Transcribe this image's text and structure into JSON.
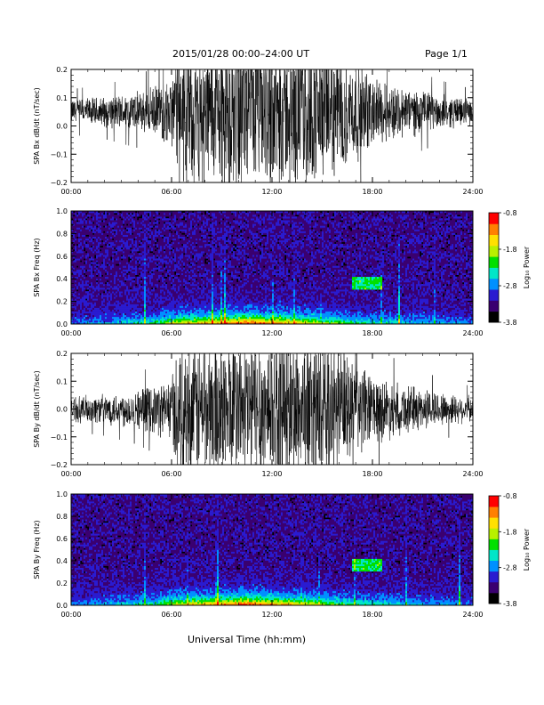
{
  "header": {
    "title": "2015/01/28  00:00–24:00 UT",
    "page": "Page 1/1"
  },
  "x_axis": {
    "label": "Universal Time (hh:mm)",
    "ticks": [
      "00:00",
      "06:00",
      "12:00",
      "18:00",
      "24:00"
    ]
  },
  "colorbar": {
    "ticks": [
      "-0.8",
      "-1.8",
      "-2.8",
      "-3.8"
    ],
    "label": "Log₁₀ Power",
    "colors": [
      "#000000",
      "#3a0070",
      "#2a1bd0",
      "#0090ff",
      "#00e6c8",
      "#00e000",
      "#b8f000",
      "#ffe000",
      "#ff8000",
      "#ff0000"
    ]
  },
  "chart_data": [
    {
      "type": "line",
      "ylabel": "SPA Bx dB/dt (nT/sec)",
      "xlim": [
        "00:00",
        "24:00"
      ],
      "ylim": [
        -0.2,
        0.2
      ],
      "yticks": [
        "0.2",
        "0.1",
        "0.0",
        "−0.1",
        "−0.2"
      ],
      "amplitude_envelope": {
        "hours": [
          0,
          2,
          4,
          5,
          6,
          6.3,
          9,
          12,
          15,
          17,
          18,
          20,
          22,
          24
        ],
        "values": [
          0.05,
          0.06,
          0.08,
          0.1,
          0.13,
          0.25,
          0.3,
          0.3,
          0.28,
          0.2,
          0.14,
          0.1,
          0.07,
          0.05
        ]
      },
      "baseline": 0.05
    },
    {
      "type": "heatmap",
      "ylabel": "SPA Bx Freq (Hz)",
      "xlim": [
        "00:00",
        "24:00"
      ],
      "ylim": [
        0.0,
        1.0
      ],
      "yticks": [
        "1.0",
        "0.8",
        "0.6",
        "0.4",
        "0.2",
        "0.0"
      ],
      "zlim": [
        -3.8,
        -0.8
      ]
    },
    {
      "type": "line",
      "ylabel": "SPA By dB/dt (nT/sec)",
      "xlim": [
        "00:00",
        "24:00"
      ],
      "ylim": [
        -0.2,
        0.2
      ],
      "yticks": [
        "0.2",
        "0.1",
        "0.0",
        "−0.1",
        "−0.2"
      ],
      "amplitude_envelope": {
        "hours": [
          0,
          2,
          4,
          5,
          6,
          6.3,
          9,
          12,
          15,
          17,
          18,
          20,
          22,
          24
        ],
        "values": [
          0.05,
          0.06,
          0.08,
          0.1,
          0.13,
          0.25,
          0.3,
          0.3,
          0.28,
          0.2,
          0.14,
          0.1,
          0.07,
          0.05
        ]
      },
      "baseline": 0.0
    },
    {
      "type": "heatmap",
      "ylabel": "SPA By Freq (Hz)",
      "xlim": [
        "00:00",
        "24:00"
      ],
      "ylim": [
        0.0,
        1.0
      ],
      "yticks": [
        "1.0",
        "0.8",
        "0.6",
        "0.4",
        "0.2",
        "0.0"
      ],
      "zlim": [
        -3.8,
        -0.8
      ]
    }
  ]
}
